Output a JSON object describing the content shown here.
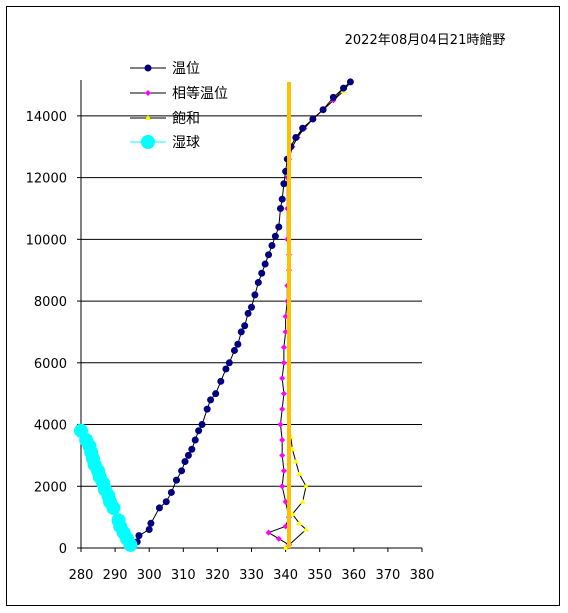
{
  "chart_data": {
    "type": "line",
    "title": "2022年08月04日21時館野",
    "xlim": [
      280,
      380
    ],
    "ylim": [
      0,
      15000
    ],
    "xticks": [
      280,
      290,
      300,
      310,
      320,
      330,
      340,
      350,
      360,
      370,
      380
    ],
    "yticks": [
      0,
      2000,
      4000,
      6000,
      8000,
      10000,
      12000,
      14000
    ],
    "grid": "horizontal",
    "legend": "top-left",
    "series": [
      {
        "name": "温位",
        "color": "#000080",
        "marker": "circle",
        "points": [
          [
            296.5,
            200
          ],
          [
            297,
            400
          ],
          [
            300,
            600
          ],
          [
            300.5,
            800
          ],
          [
            303,
            1300
          ],
          [
            305,
            1500
          ],
          [
            306.5,
            1800
          ],
          [
            308,
            2200
          ],
          [
            309.5,
            2500
          ],
          [
            310.5,
            2800
          ],
          [
            311.5,
            3000
          ],
          [
            312.5,
            3200
          ],
          [
            313.5,
            3500
          ],
          [
            314.5,
            3800
          ],
          [
            315.5,
            4000
          ],
          [
            317,
            4500
          ],
          [
            318,
            4800
          ],
          [
            319.5,
            5000
          ],
          [
            321,
            5400
          ],
          [
            322.5,
            5800
          ],
          [
            323.5,
            6000
          ],
          [
            325,
            6400
          ],
          [
            326,
            6600
          ],
          [
            327,
            7000
          ],
          [
            328,
            7200
          ],
          [
            329,
            7600
          ],
          [
            330,
            7800
          ],
          [
            331,
            8200
          ],
          [
            332,
            8600
          ],
          [
            333,
            8900
          ],
          [
            334,
            9200
          ],
          [
            335,
            9500
          ],
          [
            336,
            9800
          ],
          [
            337,
            10100
          ],
          [
            338,
            10400
          ],
          [
            338.5,
            11000
          ],
          [
            339,
            11300
          ],
          [
            339.5,
            11800
          ],
          [
            340,
            12200
          ],
          [
            340.5,
            12600
          ],
          [
            341.5,
            13000
          ],
          [
            343,
            13300
          ],
          [
            345,
            13600
          ],
          [
            348,
            13900
          ],
          [
            351,
            14200
          ],
          [
            354,
            14600
          ],
          [
            357,
            14900
          ],
          [
            359,
            15100
          ]
        ]
      },
      {
        "name": "相等温位",
        "color": "#ff00ff",
        "marker": "diamond",
        "points": [
          [
            341,
            100
          ],
          [
            338,
            300
          ],
          [
            335,
            500
          ],
          [
            340,
            700
          ],
          [
            341,
            1000
          ],
          [
            340,
            1500
          ],
          [
            339,
            2000
          ],
          [
            339.5,
            2500
          ],
          [
            339,
            3000
          ],
          [
            339,
            3500
          ],
          [
            338.5,
            4000
          ],
          [
            339,
            4500
          ],
          [
            339.5,
            5000
          ],
          [
            339,
            5500
          ],
          [
            339.5,
            6000
          ],
          [
            339.5,
            6500
          ],
          [
            340,
            7000
          ],
          [
            340,
            7500
          ],
          [
            340.5,
            8000
          ],
          [
            340.5,
            8500
          ],
          [
            341,
            9000
          ],
          [
            341,
            9500
          ],
          [
            340.5,
            10000
          ],
          [
            340.5,
            11000
          ],
          [
            340.5,
            12000
          ],
          [
            341,
            12600
          ],
          [
            342,
            13000
          ],
          [
            343.5,
            13300
          ],
          [
            345.5,
            13600
          ],
          [
            348,
            13900
          ],
          [
            351,
            14200
          ],
          [
            354,
            14500
          ],
          [
            357,
            14900
          ],
          [
            359,
            15100
          ]
        ]
      },
      {
        "name": "飽和",
        "color": "#ffff00",
        "marker": "triangle",
        "points": [
          [
            340,
            0
          ],
          [
            346,
            600
          ],
          [
            344,
            800
          ],
          [
            342,
            1100
          ],
          [
            345,
            1500
          ],
          [
            346,
            2000
          ],
          [
            344,
            2400
          ],
          [
            343,
            2800
          ],
          [
            342,
            3200
          ],
          [
            341.5,
            3600
          ],
          [
            341,
            4500
          ],
          [
            341,
            6000
          ],
          [
            341,
            8000
          ],
          [
            341,
            10000
          ],
          [
            341,
            12000
          ],
          [
            341.5,
            13000
          ],
          [
            343,
            13300
          ],
          [
            345.5,
            13600
          ],
          [
            348,
            13900
          ],
          [
            351,
            14200
          ],
          [
            354,
            14500
          ],
          [
            357,
            14800
          ],
          [
            359,
            15100
          ]
        ]
      },
      {
        "name": "湿球",
        "color": "#00ffff",
        "marker": "bigcircle",
        "points": [
          [
            294.5,
            100
          ],
          [
            293.5,
            300
          ],
          [
            292.5,
            500
          ],
          [
            291.5,
            700
          ],
          [
            291,
            900
          ],
          [
            289.5,
            1300
          ],
          [
            288.5,
            1500
          ],
          [
            288,
            1700
          ],
          [
            287,
            1900
          ],
          [
            286.5,
            2100
          ],
          [
            285.5,
            2300
          ],
          [
            285,
            2500
          ],
          [
            284,
            2700
          ],
          [
            283.5,
            2900
          ],
          [
            283,
            3100
          ],
          [
            282.5,
            3300
          ],
          [
            281.5,
            3500
          ],
          [
            280,
            3800
          ]
        ]
      }
    ],
    "vertical_line": {
      "x": 341,
      "color": "#ffc000"
    }
  }
}
